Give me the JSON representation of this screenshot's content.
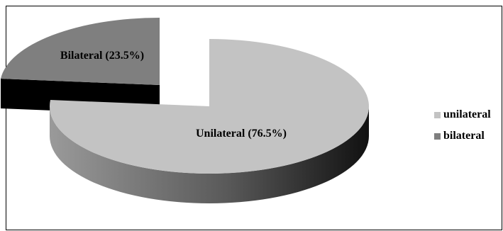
{
  "chart_data": {
    "type": "pie",
    "title": "",
    "style": "3d-exploded",
    "slices": [
      {
        "name": "unilateral",
        "label": "Unilateral (76.5%)",
        "value": 76.5,
        "color": "#c3c3c3",
        "side_dark": "#5a5a5a",
        "side_light": "#9a9a9a"
      },
      {
        "name": "bilateral",
        "label": "Bilateral (23.5%)",
        "value": 23.5,
        "color": "#7f7f7f",
        "side_dark": "#000000",
        "side_light": "#111111"
      }
    ],
    "legend": {
      "position": "right",
      "entries": [
        "unilateral",
        "bilateral"
      ]
    }
  }
}
